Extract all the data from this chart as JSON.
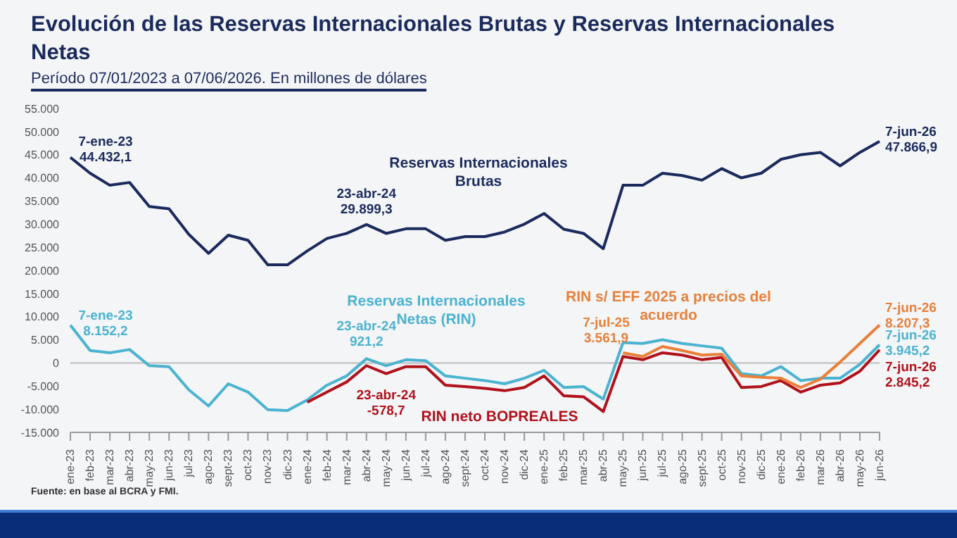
{
  "chart_data": {
    "type": "line",
    "title": "Evolución de las Reservas Internacionales Brutas y Reservas Internacionales Netas",
    "subtitle": "Período 07/01/2023 a 07/06/2026. En millones de dólares",
    "categories": [
      "ene-23",
      "feb-23",
      "mar-23",
      "abr-23",
      "may-23",
      "jun-23",
      "jul-23",
      "ago-23",
      "sept-23",
      "oct-23",
      "nov-23",
      "dic-23",
      "ene-24",
      "feb-24",
      "mar-24",
      "abr-24",
      "may-24",
      "jun-24",
      "jul-24",
      "ago-24",
      "sept-24",
      "oct-24",
      "nov-24",
      "dic-24",
      "ene-25",
      "feb-25",
      "mar-25",
      "abr-25",
      "may-25",
      "jun-25",
      "jul-25",
      "ago-25",
      "sept-25",
      "oct-25",
      "nov-25",
      "dic-25",
      "ene-26",
      "feb-26",
      "mar-26",
      "abr-26",
      "may-26",
      "jun-26"
    ],
    "series": [
      {
        "name": "Reservas Internacionales Brutas",
        "color": "#1b2a5c",
        "values": [
          44432.1,
          41000,
          38400,
          39000,
          33800,
          33300,
          27800,
          23700,
          27600,
          26500,
          21200,
          21200,
          24200,
          26900,
          28000,
          29899.3,
          28000,
          29000,
          29000,
          26500,
          27300,
          27300,
          28300,
          30000,
          32300,
          28900,
          28000,
          24700,
          38400,
          38400,
          41000,
          40500,
          39500,
          42000,
          40000,
          41000,
          44000,
          45000,
          45500,
          42600,
          45500,
          47866.9
        ]
      },
      {
        "name": "Reservas Internacionales Netas (RIN)",
        "color": "#4bb3d0",
        "values": [
          8152.2,
          2700,
          2200,
          2900,
          -600,
          -800,
          -5800,
          -9300,
          -4500,
          -6300,
          -10100,
          -10300,
          -8000,
          -4800,
          -2800,
          921.2,
          -600,
          700,
          500,
          -2800,
          -3300,
          -3800,
          -4500,
          -3300,
          -1600,
          -5300,
          -5100,
          -7800,
          4400,
          4200,
          5000,
          4200,
          3700,
          3200,
          -2300,
          -2800,
          -800,
          -3800,
          -3300,
          -3300,
          -300,
          3945.2
        ]
      },
      {
        "name": "RIN neto BOPREALES",
        "color": "#b0121b",
        "values": [
          null,
          null,
          null,
          null,
          null,
          null,
          null,
          null,
          null,
          null,
          null,
          null,
          -8500,
          -6300,
          -4100,
          -578.7,
          -2300,
          -800,
          -800,
          -4800,
          -5100,
          -5500,
          -6000,
          -5300,
          -2800,
          -7100,
          -7300,
          -10500,
          1400,
          700,
          2200,
          1700,
          700,
          1200,
          -5300,
          -5100,
          -3800,
          -6300,
          -4800,
          -4300,
          -1800,
          2845.2
        ]
      },
      {
        "name": "RIN s/ EFF 2025 a precios del acuerdo",
        "color": "#e8803a",
        "values": [
          null,
          null,
          null,
          null,
          null,
          null,
          null,
          null,
          null,
          null,
          null,
          null,
          null,
          null,
          null,
          null,
          null,
          null,
          null,
          null,
          null,
          null,
          null,
          null,
          null,
          null,
          null,
          null,
          2200,
          1400,
          3561.9,
          2700,
          1700,
          1900,
          -2800,
          -3100,
          -3300,
          -5300,
          -3500,
          200,
          4200,
          8207.3
        ]
      }
    ],
    "ylim": [
      -15000,
      55000
    ],
    "yticks": [
      {
        "value": -15000,
        "label": "-15.000"
      },
      {
        "value": -10000,
        "label": "-10.000"
      },
      {
        "value": -5000,
        "label": "-5.000"
      },
      {
        "value": 0,
        "label": "0"
      },
      {
        "value": 5000,
        "label": "5.000"
      },
      {
        "value": 10000,
        "label": "10.000"
      },
      {
        "value": 15000,
        "label": "15.000"
      },
      {
        "value": 20000,
        "label": "20.000"
      },
      {
        "value": 25000,
        "label": "25.000"
      },
      {
        "value": 30000,
        "label": "30.000"
      },
      {
        "value": 35000,
        "label": "35.000"
      },
      {
        "value": 40000,
        "label": "40.000"
      },
      {
        "value": 45000,
        "label": "45.000"
      },
      {
        "value": 50000,
        "label": "50.000"
      },
      {
        "value": 55000,
        "label": "55.000"
      }
    ],
    "ref_lines": [
      {
        "axis": "y",
        "value": 0,
        "color": "#bbbbbb"
      }
    ],
    "marker": "none",
    "line_style": "solid",
    "annotations": [
      {
        "text": "7-ene-23\n44.432,1",
        "x": "ene-23",
        "y": 44432.1
      },
      {
        "text": "23-abr-24\n29.899,3",
        "x": "abr-24",
        "y": 29899.3
      },
      {
        "text": "7-jun-26\n47.866,9",
        "x": "jun-26",
        "y": 47866.9
      },
      {
        "text": "7-ene-23\n8.152,2",
        "x": "ene-23",
        "y": 8152.2
      },
      {
        "text": "23-abr-24\n921,2",
        "x": "abr-24",
        "y": 921.2
      },
      {
        "text": "23-abr-24\n-578,7",
        "x": "abr-24",
        "y": -578.7
      },
      {
        "text": "7-jul-25\n3.561,9",
        "x": "jul-25",
        "y": 3561.9
      },
      {
        "text": "7-jun-26\n8.207,3",
        "x": "jun-26",
        "y": 8207.3
      },
      {
        "text": "7-jun-26\n3.945,2",
        "x": "jun-26",
        "y": 3945.2
      },
      {
        "text": "7-jun-26\n2.845,2",
        "x": "jun-26",
        "y": 2845.2
      },
      "Fuente: en base al BCRA y FMI."
    ]
  }
}
